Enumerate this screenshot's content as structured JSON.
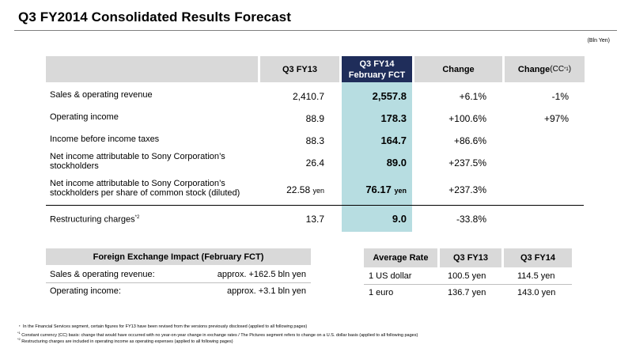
{
  "title": "Q3 FY2014  Consolidated Results Forecast",
  "unit": "(Bln Yen)",
  "table": {
    "headers": {
      "fy13": "Q3 FY13",
      "fct_line1": "Q3 FY14",
      "fct_line2": "February FCT",
      "change": "Change",
      "change_cc": "Change",
      "change_cc_suffix": "(CC",
      "change_cc_sup": "*1",
      "change_cc_close": ")"
    },
    "rows": [
      {
        "label": "Sales & operating revenue",
        "fy13": "2,410.7",
        "fct": "2,557.8",
        "change": "+6.1%",
        "cc": "-1%"
      },
      {
        "label": "Operating income",
        "fy13": "88.9",
        "fct": "178.3",
        "change": "+100.6%",
        "cc": "+97%"
      },
      {
        "label": "Income before income taxes",
        "fy13": "88.3",
        "fct": "164.7",
        "change": "+86.6%",
        "cc": ""
      },
      {
        "label_line1": "Net income attributable to Sony Corporation’s",
        "label_line2": "stockholders",
        "fy13": "26.4",
        "fct": "89.0",
        "change": "+237.5%",
        "cc": ""
      },
      {
        "label_line1": "Net income attributable to Sony Corporation’s",
        "label_line2": "stockholders per share of common stock (diluted)",
        "fy13": "22.58",
        "fct": "76.17",
        "unit": "yen",
        "change": "+237.3%",
        "cc": ""
      },
      {
        "label": "Restructuring charges",
        "label_sup": "*2",
        "fy13": "13.7",
        "fct": "9.0",
        "change": "-33.8%",
        "cc": ""
      }
    ]
  },
  "fx": {
    "header": "Foreign Exchange Impact (February FCT)",
    "rows": [
      {
        "label": "Sales & operating revenue:",
        "value": "approx. +162.5 bln yen"
      },
      {
        "label": "Operating income:",
        "value": "approx. +3.1 bln yen"
      }
    ]
  },
  "rates": {
    "headers": [
      "Average Rate",
      "Q3 FY13",
      "Q3 FY14"
    ],
    "rows": [
      {
        "currency": "1 US dollar",
        "fy13": "100.5 yen",
        "fy14": "114.5 yen"
      },
      {
        "currency": "1 euro",
        "fy13": "136.7 yen",
        "fy14": "143.0 yen"
      }
    ]
  },
  "footnotes": {
    "bullet": "・ In the Financial Services segment, certain figures for FY13 have been revised from the versions previously disclosed (applied to all following pages)",
    "note1_sup": "*1",
    "note1": " Constant currency (CC) basis: change that would have occurred with no year-on-year change in exchange rates / The Pictures segment refers to change on a U.S. dollar basis (applied to all following pages)",
    "note2_sup": "*2",
    "note2": " Restructuring charges are included in operating income as operating expenses (applied to all following pages)"
  }
}
